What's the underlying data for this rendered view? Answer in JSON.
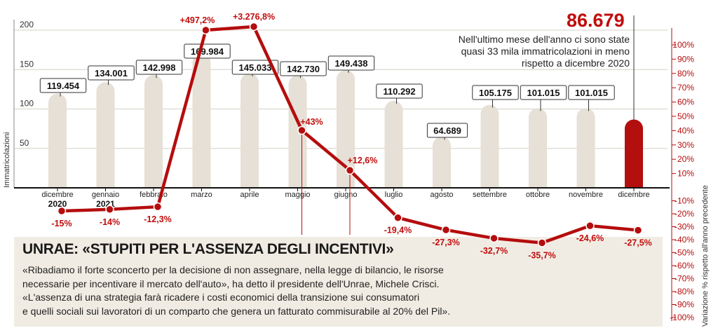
{
  "chart_data": {
    "type": "bar+line",
    "categories": [
      "dicembre",
      "gennaio",
      "febbraio",
      "marzo",
      "aprile",
      "maggio",
      "giugno",
      "luglio",
      "agosto",
      "settembre",
      "ottobre",
      "novembre",
      "dicembre"
    ],
    "year_labels": [
      "2020",
      "2021",
      "",
      "",
      "",
      "",
      "",
      "",
      "",
      "",
      "",
      "",
      ""
    ],
    "bar_values": [
      119.454,
      134.001,
      142.998,
      169.984,
      145.033,
      142.73,
      149.438,
      110.292,
      64.689,
      105.175,
      101.015,
      101.015,
      86.679
    ],
    "bar_labels": [
      "119.454",
      "134.001",
      "142.998",
      "169.984",
      "145.033",
      "142.730",
      "149.438",
      "110.292",
      "64.689",
      "105.175",
      "101.015",
      "101.015",
      ""
    ],
    "line_values": [
      -15,
      -14,
      -12.3,
      497.2,
      3276.8,
      43,
      12.6,
      -19.4,
      -27.3,
      -32.7,
      -35.7,
      -24.6,
      -27.5
    ],
    "line_labels": [
      "-15%",
      "-14%",
      "-12,3%",
      "+497,2%",
      "+3.276,8%",
      "+43%",
      "+12,6%",
      "-19,4%",
      "-27,3%",
      "-32,7%",
      "-35,7%",
      "-24,6%",
      "-27,5%"
    ],
    "left_axis": {
      "label": "Immatricolazioni",
      "ticks": [
        "200",
        "150",
        "100",
        "50"
      ],
      "tick_values": [
        200,
        150,
        100,
        50
      ]
    },
    "right_axis": {
      "label": "Variazione % rispetto all'anno precedente",
      "ticks": [
        "100%",
        "90%",
        "80%",
        "70%",
        "60%",
        "50%",
        "40%",
        "30%",
        "20%",
        "10%",
        "-10%",
        "-20%",
        "-30%",
        "-40%",
        "-50%",
        "-60%",
        "-70%",
        "-80%",
        "-90%",
        "-100%"
      ],
      "tick_values": [
        100,
        90,
        80,
        70,
        60,
        50,
        40,
        30,
        20,
        10,
        -10,
        -20,
        -30,
        -40,
        -50,
        -60,
        -70,
        -80,
        -90,
        -100
      ]
    },
    "colors": {
      "bars": "#e6e0d6",
      "highlight_bar": "#b30f0f",
      "line": "#b50d0d",
      "label_red": "#c00d0d",
      "axis": "#222222"
    }
  },
  "callout": {
    "value": "86.679",
    "lines": [
      "Nell'ultimo mese dell'anno ci sono state",
      "quasi 33 mila immatricolazioni in meno",
      "rispetto a dicembre 2020"
    ]
  },
  "article": {
    "headline": "UNRAE: «STUPITI PER L'ASSENZA DEGLI INCENTIVI»",
    "lines": [
      "«Ribadiamo il forte sconcerto per la decisione di non assegnare, nella legge di bilancio, le risorse",
      "necessarie per incentivare il mercato dell'auto», ha detto il presidente dell'Unrae, Michele Crisci.",
      "«L'assenza di una strategia farà ricadere i costi economici della transizione sui consumatori",
      "e quelli sociali sui lavoratori di un comparto che genera un fatturato commisurabile al 20% del Pil»."
    ]
  }
}
